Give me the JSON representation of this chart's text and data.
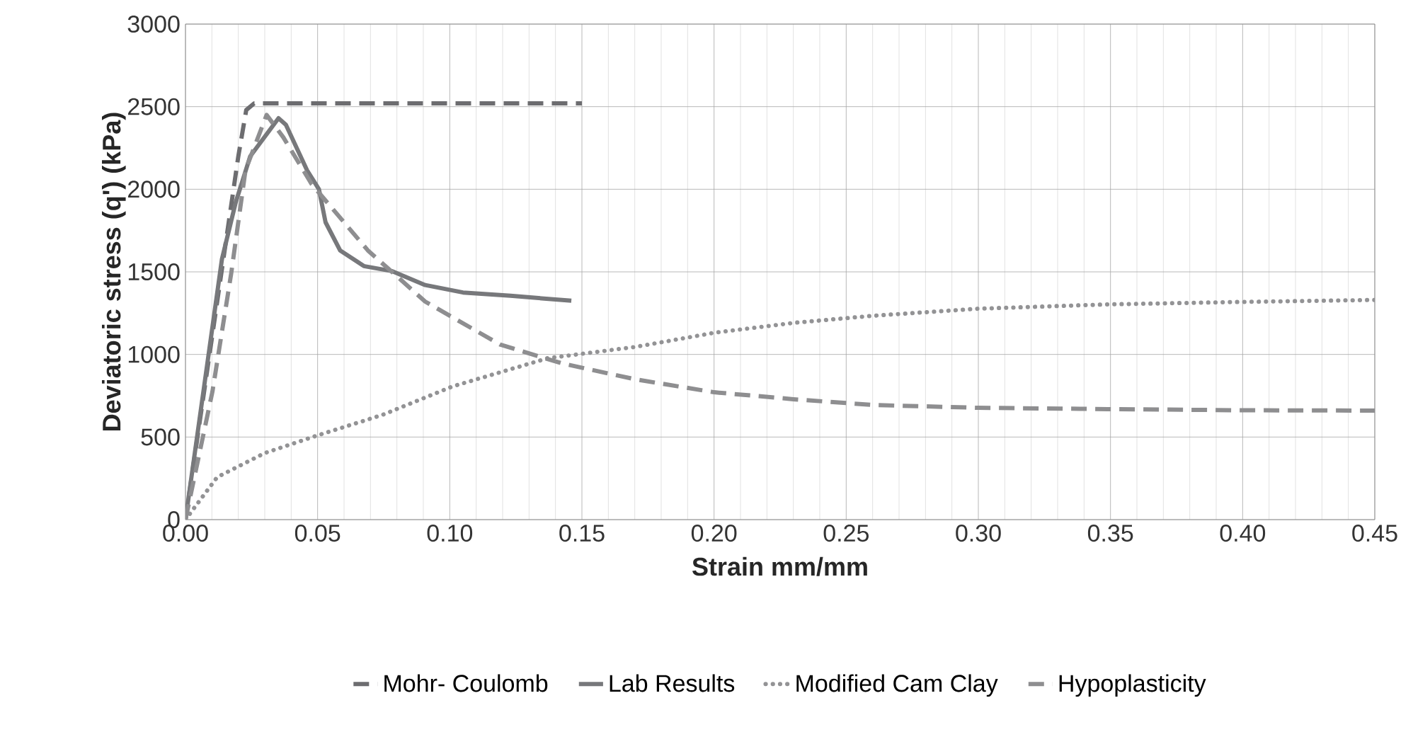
{
  "chart_data": {
    "type": "line",
    "xlabel": "Strain mm/mm",
    "ylabel": "Deviatoric stress (q') (kPa)",
    "xlim": [
      0,
      0.45
    ],
    "ylim": [
      0,
      3000
    ],
    "xticks": [
      {
        "value": 0,
        "label": "0.00"
      },
      {
        "value": 0.05,
        "label": "0.05"
      },
      {
        "value": 0.1,
        "label": "0.10"
      },
      {
        "value": 0.15,
        "label": "0.15"
      },
      {
        "value": 0.2,
        "label": "0.20"
      },
      {
        "value": 0.25,
        "label": "0.25"
      },
      {
        "value": 0.3,
        "label": "0.30"
      },
      {
        "value": 0.35,
        "label": "0.35"
      },
      {
        "value": 0.4,
        "label": "0.40"
      },
      {
        "value": 0.45,
        "label": "0.45"
      }
    ],
    "yticks": [
      0,
      500,
      1000,
      1500,
      2000,
      2500,
      3000
    ],
    "grid": true,
    "legend": "bottom",
    "marker": "none",
    "series": [
      {
        "name": "Mohr- Coulomb",
        "color": "#6d6d70",
        "line_style": "dashed",
        "x": [
          0,
          0.02,
          0.023,
          0.026,
          0.15
        ],
        "values": [
          0,
          2200,
          2480,
          2520,
          2520
        ]
      },
      {
        "name": "Lab Results",
        "color": "#77787b",
        "line_style": "solid",
        "x": [
          0,
          0.0138,
          0.019,
          0.0245,
          0.0352,
          0.038,
          0.046,
          0.0505,
          0.053,
          0.0585,
          0.0675,
          0.078,
          0.0907,
          0.105,
          0.123,
          0.146
        ],
        "values": [
          0,
          1577,
          1920,
          2200,
          2430,
          2390,
          2115,
          2000,
          1800,
          1630,
          1535,
          1505,
          1420,
          1375,
          1355,
          1325
        ]
      },
      {
        "name": "Modified Cam Clay",
        "color": "#939395",
        "line_style": "dotted",
        "x": [
          0,
          0.012,
          0.03,
          0.049,
          0.0745,
          0.101,
          0.137,
          0.17,
          0.2,
          0.23,
          0.26,
          0.3,
          0.349,
          0.4,
          0.45
        ],
        "values": [
          0,
          257,
          403,
          505,
          634,
          806,
          977,
          1045,
          1131,
          1191,
          1234,
          1277,
          1303,
          1318,
          1330
        ]
      },
      {
        "name": "Hypoplasticity",
        "color": "#8e8e90",
        "line_style": "dashed",
        "x": [
          0,
          0.0102,
          0.0173,
          0.0227,
          0.0307,
          0.037,
          0.0478,
          0.069,
          0.0907,
          0.119,
          0.1427,
          0.17,
          0.2,
          0.23,
          0.26,
          0.3,
          0.349,
          0.4,
          0.45
        ],
        "values": [
          0,
          775,
          1490,
          2115,
          2450,
          2315,
          2030,
          1630,
          1320,
          1060,
          945,
          850,
          771,
          729,
          694,
          677,
          669,
          662,
          660
        ]
      }
    ]
  }
}
